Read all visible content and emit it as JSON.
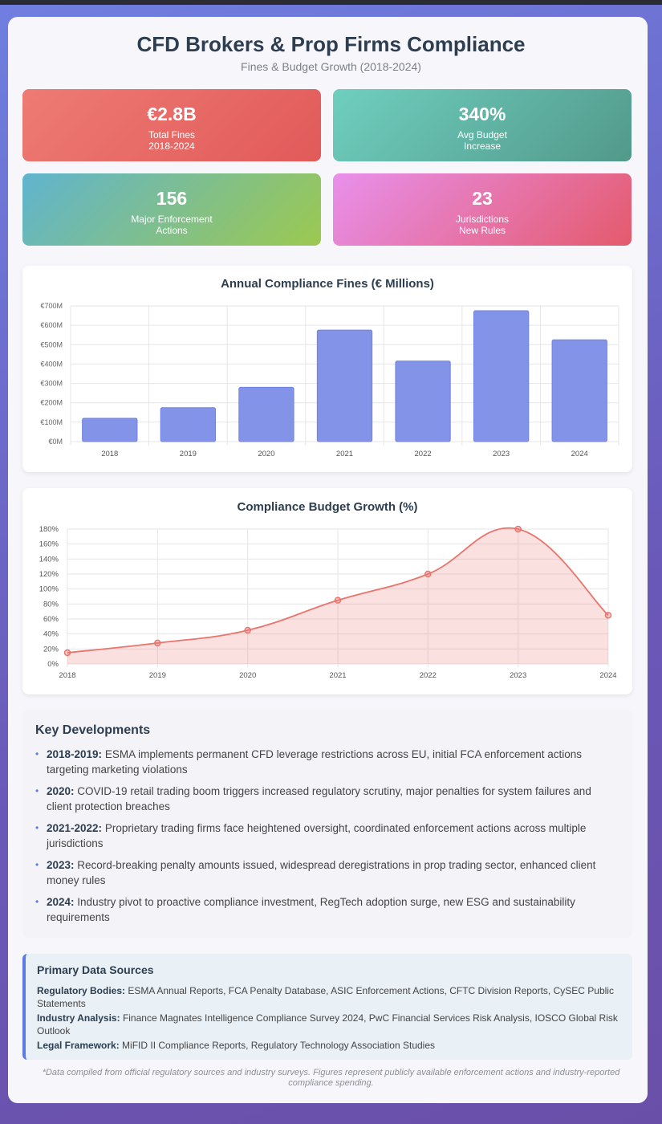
{
  "header": {
    "title": "CFD Brokers & Prop Firms Compliance",
    "subtitle": "Fines & Budget Growth (2018-2024)"
  },
  "stats": [
    {
      "value": "€2.8B",
      "label": "Total Fines\n2018-2024",
      "color": "#e8655f"
    },
    {
      "value": "340%",
      "label": "Avg Budget\nIncrease",
      "color": "#5fb3a4"
    },
    {
      "value": "156",
      "label": "Major Enforcement\nActions",
      "color": "#7dbf8a"
    },
    {
      "value": "23",
      "label": "Jurisdictions\nNew Rules",
      "color": "#e6759e"
    }
  ],
  "chart_data": [
    {
      "type": "bar",
      "title": "Annual Compliance Fines (€ Millions)",
      "categories": [
        "2018",
        "2019",
        "2020",
        "2021",
        "2022",
        "2023",
        "2024"
      ],
      "values": [
        120,
        175,
        280,
        575,
        415,
        675,
        525
      ],
      "ylim": [
        0,
        700
      ],
      "yticks": [
        "€0M",
        "€100M",
        "€200M",
        "€300M",
        "€400M",
        "€500M",
        "€600M",
        "€700M"
      ],
      "grid": true,
      "color": "#8394e8"
    },
    {
      "type": "area",
      "title": "Compliance Budget Growth (%)",
      "categories": [
        "2018",
        "2019",
        "2020",
        "2021",
        "2022",
        "2023",
        "2024"
      ],
      "values": [
        15,
        28,
        45,
        85,
        120,
        180,
        65
      ],
      "ylim": [
        0,
        180
      ],
      "yticks": [
        "0%",
        "20%",
        "40%",
        "60%",
        "80%",
        "100%",
        "120%",
        "140%",
        "160%",
        "180%"
      ],
      "grid": true,
      "color": "#e8746c"
    }
  ],
  "key_developments": {
    "heading": "Key Developments",
    "items": [
      {
        "label": "2018-2019:",
        "text": "ESMA implements permanent CFD leverage restrictions across EU, initial FCA enforcement actions targeting marketing violations"
      },
      {
        "label": "2020:",
        "text": "COVID-19 retail trading boom triggers increased regulatory scrutiny, major penalties for system failures and client protection breaches"
      },
      {
        "label": "2021-2022:",
        "text": "Proprietary trading firms face heightened oversight, coordinated enforcement actions across multiple jurisdictions"
      },
      {
        "label": "2023:",
        "text": "Record-breaking penalty amounts issued, widespread deregistrations in prop trading sector, enhanced client money rules"
      },
      {
        "label": "2024:",
        "text": "Industry pivot to proactive compliance investment, RegTech adoption surge, new ESG and sustainability requirements"
      }
    ]
  },
  "sources": {
    "heading": "Primary Data Sources",
    "items": [
      {
        "label": "Regulatory Bodies:",
        "text": "ESMA Annual Reports, FCA Penalty Database, ASIC Enforcement Actions, CFTC Division Reports, CySEC Public Statements"
      },
      {
        "label": "Industry Analysis:",
        "text": "Finance Magnates Intelligence Compliance Survey 2024, PwC Financial Services Risk Analysis, IOSCO Global Risk Outlook"
      },
      {
        "label": "Legal Framework:",
        "text": "MiFID II Compliance Reports, Regulatory Technology Association Studies"
      }
    ]
  },
  "footnote": "*Data compiled from official regulatory sources and industry surveys. Figures represent publicly available enforcement actions and industry-reported compliance spending."
}
